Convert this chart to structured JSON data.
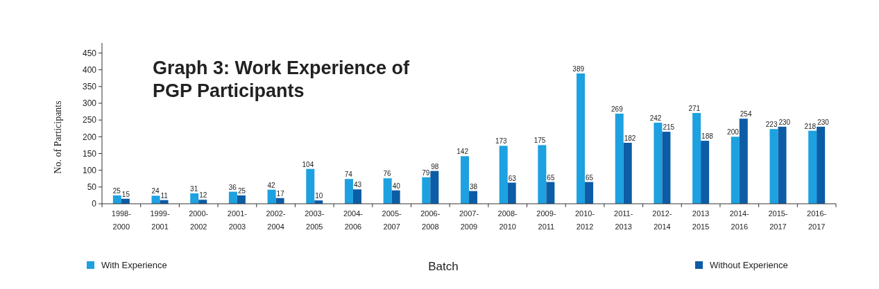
{
  "chart_data": {
    "type": "bar",
    "title": "Graph 3: Work Experience of PGP Participants",
    "xlabel": "Batch",
    "ylabel": "No. of Participants",
    "categories": [
      "1998- 2000",
      "1999- 2001",
      "2000- 2002",
      "2001- 2003",
      "2002- 2004",
      "2003- 2005",
      "2004- 2006",
      "2005- 2007",
      "2006- 2008",
      "2007- 2009",
      "2008- 2010",
      "2009- 2011",
      "2010- 2012",
      "2011- 2013",
      "2012- 2014",
      "2013 2015",
      "2014- 2016",
      "2015- 2017",
      "2016- 2017"
    ],
    "series": [
      {
        "name": "With Experience",
        "color": "#1da1e0",
        "values": [
          25,
          24,
          31,
          36,
          42,
          104,
          74,
          76,
          79,
          142,
          173,
          175,
          389,
          269,
          242,
          271,
          200,
          223,
          218
        ]
      },
      {
        "name": "Without Experience",
        "color": "#0d5ca6",
        "values": [
          15,
          11,
          12,
          25,
          17,
          10,
          43,
          40,
          98,
          38,
          63,
          65,
          65,
          182,
          215,
          188,
          254,
          230,
          230
        ]
      }
    ],
    "ylim": [
      0,
      480
    ],
    "yticks": [
      0,
      50,
      100,
      150,
      200,
      250,
      300,
      350,
      400,
      450
    ],
    "data_labels": true,
    "legend": "bottom",
    "grid": false
  }
}
